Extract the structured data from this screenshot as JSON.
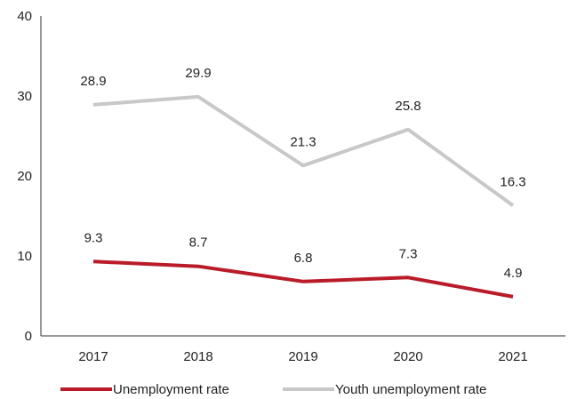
{
  "chart_data": {
    "type": "line",
    "categories": [
      "2017",
      "2018",
      "2019",
      "2020",
      "2021"
    ],
    "ylim": [
      0,
      40
    ],
    "yticks": [
      0,
      10,
      20,
      30,
      40
    ],
    "grid": false,
    "legend_position": "bottom",
    "series": [
      {
        "name": "Unemployment rate",
        "values": [
          9.3,
          8.7,
          6.8,
          7.3,
          4.9
        ],
        "labels": [
          "9.3",
          "8.7",
          "6.8",
          "7.3",
          "4.9"
        ],
        "color": "#B91C28"
      },
      {
        "name": "Youth unemployment rate",
        "values": [
          28.9,
          29.9,
          21.3,
          25.8,
          16.3
        ],
        "labels": [
          "28.9",
          "29.9",
          "21.3",
          "25.8",
          "16.3"
        ],
        "color": "#C8C8C8"
      }
    ]
  }
}
